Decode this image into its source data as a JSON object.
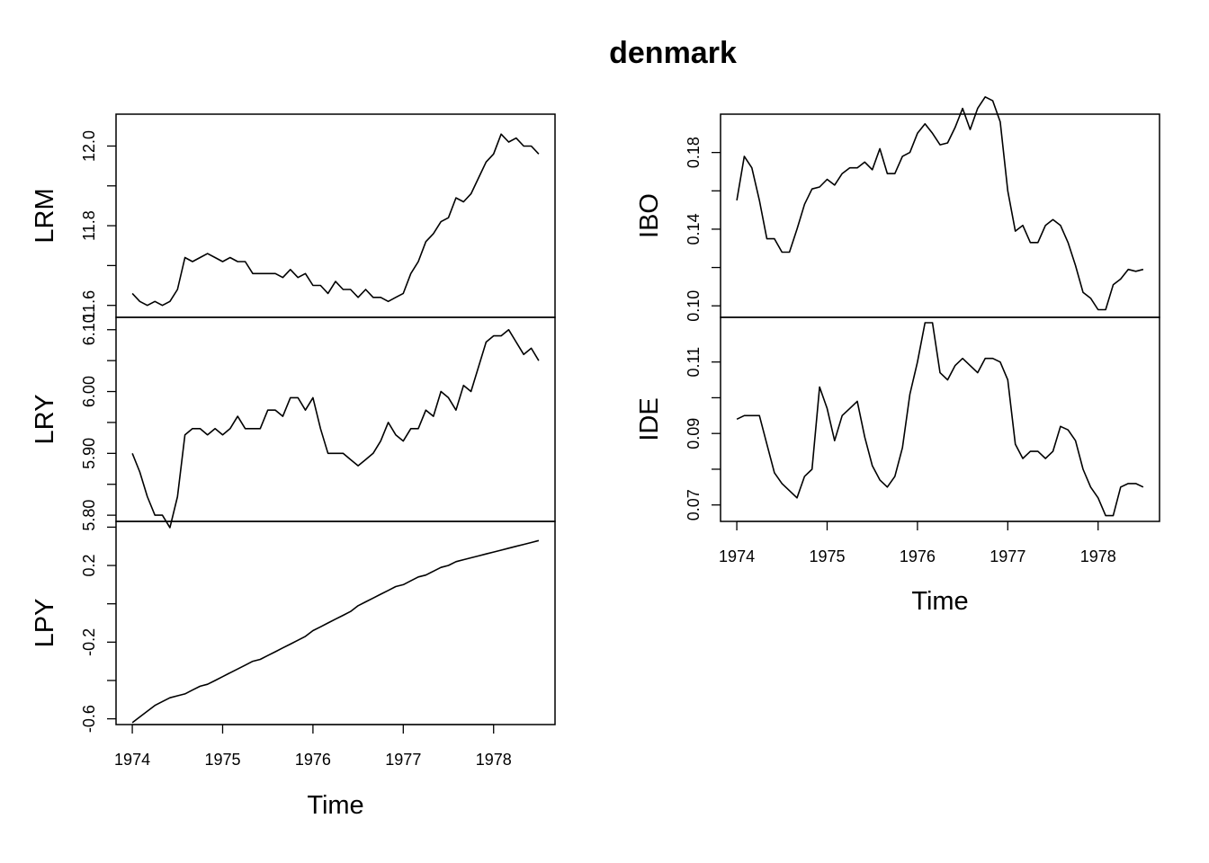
{
  "title": "denmark",
  "chart_data": [
    {
      "type": "line",
      "column": "left",
      "xlabel": "Time",
      "x_ticks": [
        1974,
        1975,
        1976,
        1977,
        1978
      ],
      "x_tick_labels": [
        "1974",
        "1975",
        "1976",
        "1977",
        "1978"
      ],
      "xlim": [
        1973.82,
        1978.68
      ],
      "x": [
        1974.0,
        1974.25,
        1974.5,
        1974.75,
        1975.0,
        1975.25,
        1975.5,
        1975.75,
        1976.0,
        1976.25,
        1976.5,
        1976.75,
        1977.0,
        1977.25,
        1977.5,
        1977.75,
        1978.0,
        1978.25,
        1978.5,
        1974.0833,
        1974.1667,
        1974.3333,
        1974.4167,
        1974.5833,
        1974.6667,
        1974.8333,
        1974.9167,
        1975.0833,
        1975.1667,
        1975.3333,
        1975.4167,
        1975.5833,
        1975.6667,
        1975.8333,
        1975.9167,
        1976.0833,
        1976.1667,
        1976.3333,
        1976.4167,
        1976.5833,
        1976.6667,
        1976.8333,
        1976.9167,
        1977.0833,
        1977.1667,
        1977.3333,
        1977.4167,
        1977.5833,
        1977.6667,
        1977.8333,
        1977.9167,
        1978.0833,
        1978.1667,
        1978.3333,
        1978.4167
      ],
      "panels": [
        {
          "name": "LRM",
          "ylim": [
            11.57,
            12.08
          ],
          "y_ticks": [
            11.6,
            11.7,
            11.8,
            11.9,
            12.0
          ],
          "y_tick_labels": [
            "11.6",
            "",
            "11.8",
            "",
            "12.0"
          ],
          "series": [
            {
              "x": [
                1974.0,
                1974.0833,
                1974.1667,
                1974.25,
                1974.3333,
                1974.4167,
                1974.5,
                1974.5833,
                1974.6667,
                1974.75,
                1974.8333,
                1974.9167,
                1975.0,
                1975.0833,
                1975.1667,
                1975.25,
                1975.3333,
                1975.4167,
                1975.5,
                1975.5833,
                1975.6667,
                1975.75,
                1975.8333,
                1975.9167,
                1976.0,
                1976.0833,
                1976.1667,
                1976.25,
                1976.3333,
                1976.4167,
                1976.5,
                1976.5833,
                1976.6667,
                1976.75,
                1976.8333,
                1976.9167,
                1977.0,
                1977.0833,
                1977.1667,
                1977.25,
                1977.3333,
                1977.4167,
                1977.5,
                1977.5833,
                1977.6667,
                1977.75,
                1977.8333,
                1977.9167,
                1978.0,
                1978.0833,
                1978.1667,
                1978.25,
                1978.3333,
                1978.4167,
                1978.5
              ],
              "y": [
                11.63,
                11.61,
                11.6,
                11.61,
                11.6,
                11.61,
                11.64,
                11.72,
                11.71,
                11.72,
                11.73,
                11.72,
                11.71,
                11.72,
                11.71,
                11.71,
                11.68,
                11.68,
                11.68,
                11.68,
                11.67,
                11.69,
                11.67,
                11.68,
                11.65,
                11.65,
                11.63,
                11.66,
                11.64,
                11.64,
                11.62,
                11.64,
                11.62,
                11.62,
                11.61,
                11.62,
                11.63,
                11.68,
                11.71,
                11.76,
                11.78,
                11.81,
                11.82,
                11.87,
                11.86,
                11.88,
                11.92,
                11.96,
                11.98,
                12.03,
                12.01,
                12.02,
                12.0,
                12.0,
                11.98
              ]
            }
          ]
        },
        {
          "name": "LRY",
          "ylim": [
            5.79,
            6.12
          ],
          "y_ticks": [
            5.8,
            5.85,
            5.9,
            5.95,
            6.0,
            6.05,
            6.1
          ],
          "y_tick_labels": [
            "5.80",
            "",
            "5.90",
            "",
            "6.00",
            "",
            "6.10"
          ],
          "series": [
            {
              "x": [
                1974.0,
                1974.0833,
                1974.1667,
                1974.25,
                1974.3333,
                1974.4167,
                1974.5,
                1974.5833,
                1974.6667,
                1974.75,
                1974.8333,
                1974.9167,
                1975.0,
                1975.0833,
                1975.1667,
                1975.25,
                1975.3333,
                1975.4167,
                1975.5,
                1975.5833,
                1975.6667,
                1975.75,
                1975.8333,
                1975.9167,
                1976.0,
                1976.0833,
                1976.1667,
                1976.25,
                1976.3333,
                1976.4167,
                1976.5,
                1976.5833,
                1976.6667,
                1976.75,
                1976.8333,
                1976.9167,
                1977.0,
                1977.0833,
                1977.1667,
                1977.25,
                1977.3333,
                1977.4167,
                1977.5,
                1977.5833,
                1977.6667,
                1977.75,
                1977.8333,
                1977.9167,
                1978.0,
                1978.0833,
                1978.1667,
                1978.25,
                1978.3333,
                1978.4167,
                1978.5
              ],
              "y": [
                5.9,
                5.87,
                5.83,
                5.8,
                5.8,
                5.78,
                5.83,
                5.93,
                5.94,
                5.94,
                5.93,
                5.94,
                5.93,
                5.94,
                5.96,
                5.94,
                5.94,
                5.94,
                5.97,
                5.97,
                5.96,
                5.99,
                5.99,
                5.97,
                5.99,
                5.94,
                5.9,
                5.9,
                5.9,
                5.89,
                5.88,
                5.89,
                5.9,
                5.92,
                5.95,
                5.93,
                5.92,
                5.94,
                5.94,
                5.97,
                5.96,
                6.0,
                5.99,
                5.97,
                6.01,
                6.0,
                6.04,
                6.08,
                6.09,
                6.09,
                6.1,
                6.08,
                6.06,
                6.07,
                6.05
              ]
            }
          ]
        },
        {
          "name": "LPY",
          "ylim": [
            -0.63,
            0.43
          ],
          "y_ticks": [
            -0.6,
            -0.4,
            -0.2,
            0.0,
            0.2,
            0.4
          ],
          "y_tick_labels": [
            "-0.6",
            "",
            "-0.2",
            "",
            "0.2",
            ""
          ],
          "series": [
            {
              "x": [
                1974.0,
                1974.0833,
                1974.1667,
                1974.25,
                1974.3333,
                1974.4167,
                1974.5,
                1974.5833,
                1974.6667,
                1974.75,
                1974.8333,
                1974.9167,
                1975.0,
                1975.0833,
                1975.1667,
                1975.25,
                1975.3333,
                1975.4167,
                1975.5,
                1975.5833,
                1975.6667,
                1975.75,
                1975.8333,
                1975.9167,
                1976.0,
                1976.0833,
                1976.1667,
                1976.25,
                1976.3333,
                1976.4167,
                1976.5,
                1976.5833,
                1976.6667,
                1976.75,
                1976.8333,
                1976.9167,
                1977.0,
                1977.0833,
                1977.1667,
                1977.25,
                1977.3333,
                1977.4167,
                1977.5,
                1977.5833,
                1977.6667,
                1977.75,
                1977.8333,
                1977.9167,
                1978.0,
                1978.0833,
                1978.1667,
                1978.25,
                1978.3333,
                1978.4167,
                1978.5
              ],
              "y": [
                -0.62,
                -0.59,
                -0.56,
                -0.53,
                -0.51,
                -0.49,
                -0.48,
                -0.47,
                -0.45,
                -0.43,
                -0.42,
                -0.4,
                -0.38,
                -0.36,
                -0.34,
                -0.32,
                -0.3,
                -0.29,
                -0.27,
                -0.25,
                -0.23,
                -0.21,
                -0.19,
                -0.17,
                -0.14,
                -0.12,
                -0.1,
                -0.08,
                -0.06,
                -0.04,
                -0.01,
                0.01,
                0.03,
                0.05,
                0.07,
                0.09,
                0.1,
                0.12,
                0.14,
                0.15,
                0.17,
                0.19,
                0.2,
                0.22,
                0.23,
                0.24,
                0.25,
                0.26,
                0.27,
                0.28,
                0.29,
                0.3,
                0.31,
                0.32,
                0.33
              ]
            }
          ]
        }
      ]
    },
    {
      "type": "line",
      "column": "right",
      "xlabel": "Time",
      "x_ticks": [
        1974,
        1975,
        1976,
        1977,
        1978
      ],
      "x_tick_labels": [
        "1974",
        "1975",
        "1976",
        "1977",
        "1978"
      ],
      "xlim": [
        1973.82,
        1978.68
      ],
      "panels": [
        {
          "name": "IBO",
          "ylim": [
            0.094,
            0.2
          ],
          "y_ticks": [
            0.1,
            0.12,
            0.14,
            0.16,
            0.18
          ],
          "y_tick_labels": [
            "0.10",
            "",
            "0.14",
            "",
            "0.18"
          ],
          "series": [
            {
              "x": [
                1974.0,
                1974.0833,
                1974.1667,
                1974.25,
                1974.3333,
                1974.4167,
                1974.5,
                1974.5833,
                1974.6667,
                1974.75,
                1974.8333,
                1974.9167,
                1975.0,
                1975.0833,
                1975.1667,
                1975.25,
                1975.3333,
                1975.4167,
                1975.5,
                1975.5833,
                1975.6667,
                1975.75,
                1975.8333,
                1975.9167,
                1976.0,
                1976.0833,
                1976.1667,
                1976.25,
                1976.3333,
                1976.4167,
                1976.5,
                1976.5833,
                1976.6667,
                1976.75,
                1976.8333,
                1976.9167,
                1977.0,
                1977.0833,
                1977.1667,
                1977.25,
                1977.3333,
                1977.4167,
                1977.5,
                1977.5833,
                1977.6667,
                1977.75,
                1977.8333,
                1977.9167,
                1978.0,
                1978.0833,
                1978.1667,
                1978.25,
                1978.3333,
                1978.4167,
                1978.5
              ],
              "y": [
                0.155,
                0.178,
                0.172,
                0.155,
                0.135,
                0.135,
                0.128,
                0.128,
                0.14,
                0.153,
                0.161,
                0.162,
                0.166,
                0.163,
                0.169,
                0.172,
                0.172,
                0.175,
                0.171,
                0.182,
                0.169,
                0.169,
                0.178,
                0.18,
                0.19,
                0.195,
                0.19,
                0.184,
                0.185,
                0.193,
                0.203,
                0.192,
                0.203,
                0.209,
                0.207,
                0.196,
                0.16,
                0.139,
                0.142,
                0.133,
                0.133,
                0.142,
                0.145,
                0.142,
                0.133,
                0.121,
                0.107,
                0.104,
                0.098,
                0.098,
                0.111,
                0.114,
                0.119,
                0.118,
                0.119
              ]
            }
          ]
        },
        {
          "name": "IDE",
          "ylim": [
            0.0654,
            0.1225
          ],
          "y_ticks": [
            0.07,
            0.08,
            0.09,
            0.1,
            0.11
          ],
          "y_tick_labels": [
            "0.07",
            "",
            "0.09",
            "",
            "0.11"
          ],
          "series": [
            {
              "x": [
                1974.0,
                1974.0833,
                1974.1667,
                1974.25,
                1974.3333,
                1974.4167,
                1974.5,
                1974.5833,
                1974.6667,
                1974.75,
                1974.8333,
                1974.9167,
                1975.0,
                1975.0833,
                1975.1667,
                1975.25,
                1975.3333,
                1975.4167,
                1975.5,
                1975.5833,
                1975.6667,
                1975.75,
                1975.8333,
                1975.9167,
                1976.0,
                1976.0833,
                1976.1667,
                1976.25,
                1976.3333,
                1976.4167,
                1976.5,
                1976.5833,
                1976.6667,
                1976.75,
                1976.8333,
                1976.9167,
                1977.0,
                1977.0833,
                1977.1667,
                1977.25,
                1977.3333,
                1977.4167,
                1977.5,
                1977.5833,
                1977.6667,
                1977.75,
                1977.8333,
                1977.9167,
                1978.0,
                1978.0833,
                1978.1667,
                1978.25,
                1978.3333,
                1978.4167,
                1978.5
              ],
              "y": [
                0.094,
                0.095,
                0.095,
                0.095,
                0.087,
                0.079,
                0.076,
                0.074,
                0.072,
                0.078,
                0.08,
                0.103,
                0.097,
                0.088,
                0.095,
                0.097,
                0.099,
                0.089,
                0.081,
                0.077,
                0.075,
                0.078,
                0.086,
                0.101,
                0.11,
                0.121,
                0.121,
                0.107,
                0.105,
                0.109,
                0.111,
                0.109,
                0.107,
                0.111,
                0.111,
                0.11,
                0.105,
                0.087,
                0.083,
                0.085,
                0.085,
                0.083,
                0.085,
                0.092,
                0.091,
                0.088,
                0.08,
                0.075,
                0.072,
                0.067,
                0.067,
                0.075,
                0.076,
                0.076,
                0.075
              ]
            }
          ]
        }
      ]
    }
  ]
}
